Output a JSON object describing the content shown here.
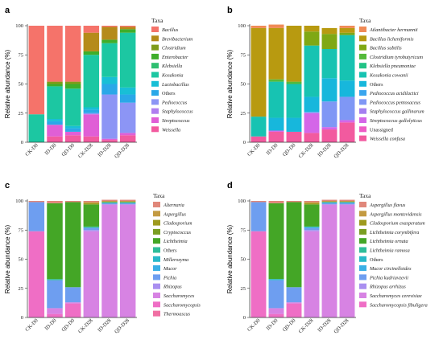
{
  "chart_data": [
    {
      "panel_label": "a",
      "type": "bar",
      "stacked": true,
      "ylabel": "Relative abundance (%)",
      "ylim": [
        0,
        100
      ],
      "yticks": [
        0,
        25,
        50,
        75,
        100
      ],
      "legend_title": "Taxa",
      "legend_position": "right",
      "categories": [
        "CK-D0",
        "ID-D0",
        "QD-D0",
        "CK-D28",
        "ID-D28",
        "QD-D28"
      ],
      "series": [
        {
          "name": "Weissella",
          "color": "#f25a9f",
          "values": [
            0,
            5,
            6,
            5,
            2,
            6
          ]
        },
        {
          "name": "Streptococcus",
          "color": "#e05fd6",
          "values": [
            0,
            10,
            3,
            19,
            1,
            2
          ]
        },
        {
          "name": "Staphylococcus",
          "color": "#b07ef0",
          "values": [
            0,
            0,
            0,
            0,
            0,
            0
          ]
        },
        {
          "name": "Pediococcus",
          "color": "#8c95f5",
          "values": [
            0,
            0,
            0,
            1,
            38,
            26
          ]
        },
        {
          "name": "Others",
          "color": "#2aa8e8",
          "values": [
            0,
            3,
            3,
            3,
            9,
            7
          ]
        },
        {
          "name": "Lactobacillus",
          "color": "#18bfd6",
          "values": [
            0,
            2,
            2,
            2,
            6,
            6
          ]
        },
        {
          "name": "Kosakonia",
          "color": "#1cc7a2",
          "values": [
            24,
            28,
            32,
            45,
            29,
            47
          ]
        },
        {
          "name": "Klebsiella",
          "color": "#2fbf71",
          "values": [
            0,
            0,
            0,
            0,
            0,
            0
          ]
        },
        {
          "name": "Enterobacter",
          "color": "#3fae2a",
          "values": [
            0,
            2,
            4,
            3,
            3,
            3
          ]
        },
        {
          "name": "Clostridium",
          "color": "#7f9c19",
          "values": [
            0,
            2,
            2,
            0,
            0,
            0
          ]
        },
        {
          "name": "Brevibacterium",
          "color": "#b58b1a",
          "values": [
            0,
            0,
            0,
            16,
            11,
            2
          ]
        },
        {
          "name": "Bacillus",
          "color": "#f5736a",
          "values": [
            76,
            48,
            48,
            6,
            1,
            1
          ]
        }
      ]
    },
    {
      "panel_label": "b",
      "type": "bar",
      "stacked": true,
      "ylabel": "Relative abundance (%)",
      "ylim": [
        0,
        100
      ],
      "yticks": [
        0,
        25,
        50,
        75,
        100
      ],
      "legend_title": "Taxa",
      "legend_position": "right",
      "categories": [
        "CK-D0",
        "ID-D0",
        "QD-D0",
        "CK-D28",
        "ID-D28",
        "QD-D28"
      ],
      "series": [
        {
          "name": "Weissella confusa",
          "color": "#f25a9f",
          "values": [
            5,
            9,
            9,
            8,
            11,
            17
          ]
        },
        {
          "name": "Unassigned",
          "color": "#ee5cc6",
          "values": [
            0,
            0,
            0,
            0,
            0,
            0
          ]
        },
        {
          "name": "Streptococcus gallolyticus",
          "color": "#d466e8",
          "values": [
            0,
            1,
            0,
            17,
            2,
            2
          ]
        },
        {
          "name": "Staphylococcus gallinarum",
          "color": "#a47ff0",
          "values": [
            0,
            0,
            0,
            0,
            0,
            0
          ]
        },
        {
          "name": "Pediococcus pentosaceus",
          "color": "#7f97f5",
          "values": [
            0,
            0,
            0,
            1,
            22,
            20
          ]
        },
        {
          "name": "Pediococcus acidilactici",
          "color": "#3aa6ee",
          "values": [
            0,
            0,
            0,
            0,
            0,
            0
          ]
        },
        {
          "name": "Others",
          "color": "#17b7dc",
          "values": [
            0,
            11,
            12,
            13,
            20,
            14
          ]
        },
        {
          "name": "Kosakonia cowanii",
          "color": "#17c3b2",
          "values": [
            17,
            31,
            29,
            44,
            25,
            39
          ]
        },
        {
          "name": "Klebsiella pneumoniae",
          "color": "#22c386",
          "values": [
            0,
            0,
            0,
            0,
            0,
            0
          ]
        },
        {
          "name": "Clostridium tyrobutyricum",
          "color": "#54ba3a",
          "values": [
            0,
            2,
            2,
            0,
            0,
            0
          ]
        },
        {
          "name": "Bacillus subtilis",
          "color": "#7fa814",
          "values": [
            0,
            0,
            0,
            12,
            13,
            2
          ]
        },
        {
          "name": "Bacillus licheniformis",
          "color": "#b89a10",
          "values": [
            76,
            44,
            48,
            5,
            5,
            4
          ]
        },
        {
          "name": "Atlantibacter hermannii",
          "color": "#f08a56",
          "values": [
            2,
            3,
            0,
            0,
            0,
            2
          ]
        }
      ]
    },
    {
      "panel_label": "c",
      "type": "bar",
      "stacked": true,
      "ylabel": "Relative abundance (%)",
      "ylim": [
        0,
        100
      ],
      "yticks": [
        0,
        25,
        50,
        75,
        100
      ],
      "legend_title": "Taxa",
      "legend_position": "right",
      "categories": [
        "CK-D0",
        "ID-D0",
        "QD-D0",
        "CK-D28",
        "ID-D28",
        "QD-D28"
      ],
      "series": [
        {
          "name": "Thermoascus",
          "color": "#f06fa3",
          "values": [
            0,
            0,
            0,
            0,
            0,
            0
          ]
        },
        {
          "name": "Saccharomycopsis",
          "color": "#ef6ec5",
          "values": [
            74,
            3,
            12,
            0,
            0,
            0
          ]
        },
        {
          "name": "Saccharomyces",
          "color": "#d783e3",
          "values": [
            0,
            5,
            1,
            74,
            97,
            97
          ]
        },
        {
          "name": "Rhizopus",
          "color": "#a98ff0",
          "values": [
            0,
            0,
            0,
            1,
            0,
            0
          ]
        },
        {
          "name": "Pichia",
          "color": "#6e9ef0",
          "values": [
            25,
            24,
            13,
            2,
            1,
            1
          ]
        },
        {
          "name": "Mucor",
          "color": "#3ab0e6",
          "values": [
            0,
            0,
            0,
            0,
            0,
            0
          ]
        },
        {
          "name": "Millerozyma",
          "color": "#28b9c9",
          "values": [
            0,
            0,
            0,
            0,
            0,
            0
          ]
        },
        {
          "name": "Others",
          "color": "#2ebd9a",
          "values": [
            0,
            1,
            0,
            1,
            1,
            1
          ]
        },
        {
          "name": "Lichtheimia",
          "color": "#44a626",
          "values": [
            0,
            65,
            73,
            19,
            0,
            0
          ]
        },
        {
          "name": "Cryptococcus",
          "color": "#7a9e22",
          "values": [
            0,
            0,
            0,
            0,
            0,
            0
          ]
        },
        {
          "name": "Cladosporium",
          "color": "#9e9a1e",
          "values": [
            0,
            0,
            0,
            1,
            0,
            0
          ]
        },
        {
          "name": "Aspergillus",
          "color": "#c39a41",
          "values": [
            0,
            0,
            0,
            1,
            1,
            1
          ]
        },
        {
          "name": "Alternaria",
          "color": "#e0877a",
          "values": [
            1,
            2,
            1,
            1,
            1,
            1
          ]
        }
      ]
    },
    {
      "panel_label": "d",
      "type": "bar",
      "stacked": true,
      "ylabel": "Relative abundance (%)",
      "ylim": [
        0,
        100
      ],
      "yticks": [
        0,
        25,
        50,
        75,
        100
      ],
      "legend_title": "Taxa",
      "legend_position": "right",
      "categories": [
        "CK-D0",
        "ID-D0",
        "QD-D0",
        "CK-D28",
        "ID-D28",
        "QD-D28"
      ],
      "series": [
        {
          "name": "Saccharomycopsis fibuligera",
          "color": "#ef6ec5",
          "values": [
            74,
            3,
            12,
            0,
            0,
            0
          ]
        },
        {
          "name": "Saccharomyces cerevisiae",
          "color": "#d783e3",
          "values": [
            0,
            5,
            1,
            74,
            97,
            97
          ]
        },
        {
          "name": "Rhizopus arrhizus",
          "color": "#a98ff0",
          "values": [
            0,
            0,
            0,
            1,
            0,
            0
          ]
        },
        {
          "name": "Pichia kudriavzevii",
          "color": "#6e9ef0",
          "values": [
            25,
            24,
            13,
            2,
            1,
            1
          ]
        },
        {
          "name": "Mucor circinelloides",
          "color": "#3ab0e6",
          "values": [
            0,
            0,
            0,
            0,
            0,
            0
          ]
        },
        {
          "name": "Others",
          "color": "#28b9c9",
          "values": [
            0,
            1,
            0,
            1,
            1,
            1
          ]
        },
        {
          "name": "Lichtheimia ramosa",
          "color": "#2ebd9a",
          "values": [
            0,
            0,
            0,
            0,
            0,
            0
          ]
        },
        {
          "name": "Lichtheimia ornata",
          "color": "#44a626",
          "values": [
            0,
            65,
            73,
            19,
            0,
            0
          ]
        },
        {
          "name": "Lichtheimia corymbifera",
          "color": "#7a9e22",
          "values": [
            0,
            0,
            0,
            0,
            0,
            0
          ]
        },
        {
          "name": "Cladosporium exasperatum",
          "color": "#9e9a1e",
          "values": [
            0,
            0,
            0,
            1,
            0,
            0
          ]
        },
        {
          "name": "Aspergillus montevidensis",
          "color": "#c39a41",
          "values": [
            0,
            0,
            0,
            1,
            1,
            1
          ]
        },
        {
          "name": "Aspergillus flavus",
          "color": "#e0877a",
          "values": [
            1,
            2,
            1,
            1,
            1,
            1
          ]
        }
      ]
    }
  ]
}
